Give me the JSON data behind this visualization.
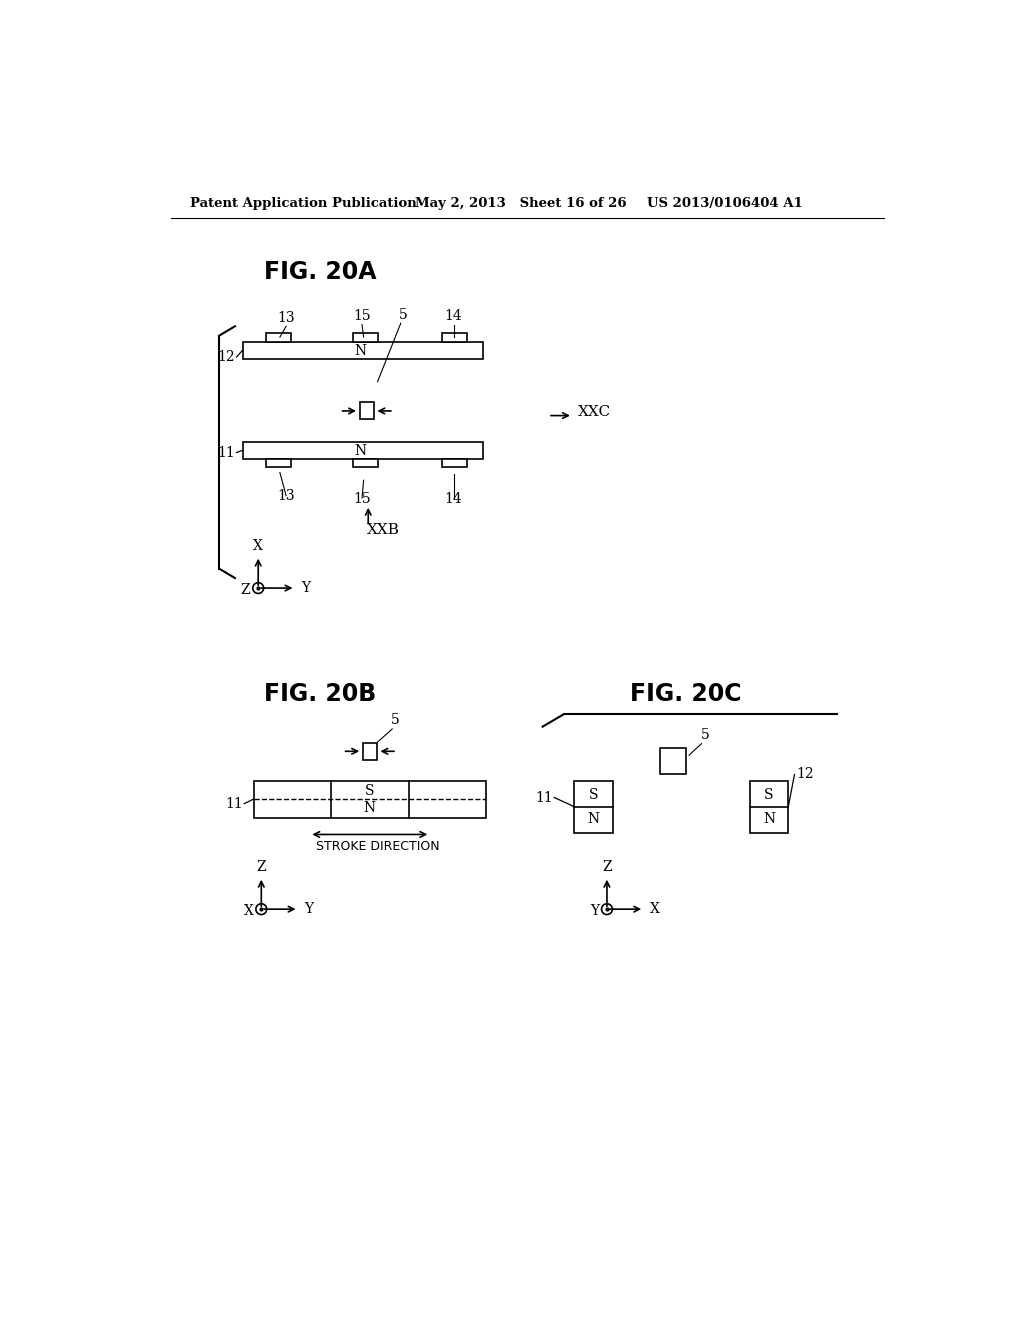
{
  "bg_color": "#ffffff",
  "header_left": "Patent Application Publication",
  "header_mid": "May 2, 2013   Sheet 16 of 26",
  "header_right": "US 2013/0106404 A1",
  "fig20a_title": "FIG. 20A",
  "fig20b_title": "FIG. 20B",
  "fig20c_title": "FIG. 20C"
}
